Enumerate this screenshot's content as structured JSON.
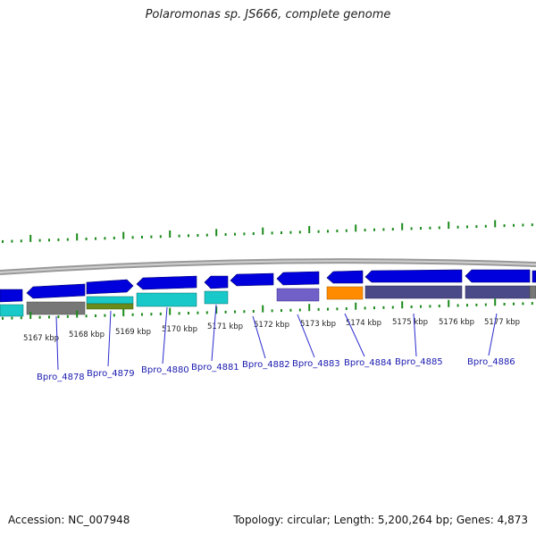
{
  "title": "Polaromonas sp. JS666, complete genome",
  "footer": {
    "accession": "Accession: NC_007948",
    "topology": "Topology: circular; Length: 5,200,264 bp; Genes: 4,873"
  },
  "colors": {
    "outer_cds_forward": "#0000dd",
    "outer_cds_reverse": "#0000ee",
    "backbone": "#888888",
    "tick_green": "#1a8a1a",
    "label_blue": "#1a1ab0",
    "leader_line": "#2a2ad0"
  },
  "kbp_labels": [
    "5167 kbp",
    "5168 kbp",
    "5169 kbp",
    "5170 kbp",
    "5171 kbp",
    "5172 kbp",
    "5173 kbp",
    "5174 kbp",
    "5175 kbp",
    "5176 kbp",
    "5177 kbp"
  ],
  "gene_labels": [
    "Bpro_4878",
    "Bpro_4879",
    "Bpro_4880",
    "Bpro_4881",
    "Bpro_4882",
    "Bpro_4883",
    "Bpro_4884",
    "Bpro_4885",
    "Bpro_4886"
  ],
  "feature_colors": {
    "cyan": "#19c8c8",
    "gray": "#777777",
    "olive": "#6a8a1a",
    "lavender": "#7060c8",
    "orange": "#ff8c00",
    "slate": "#4a4a88"
  }
}
